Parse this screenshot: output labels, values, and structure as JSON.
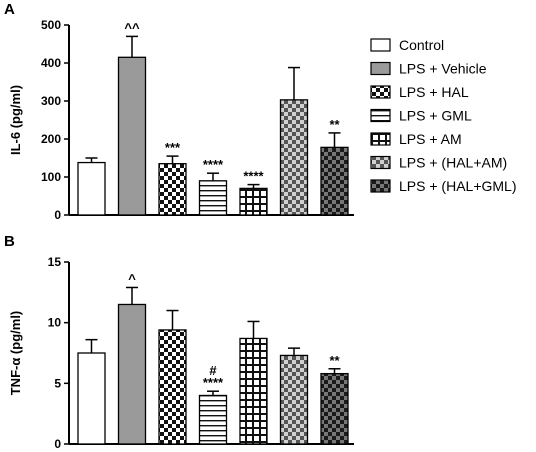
{
  "legend": [
    {
      "label": "Control",
      "pattern": "white"
    },
    {
      "label": "LPS + Vehicle",
      "pattern": "gray"
    },
    {
      "label": "LPS + HAL",
      "pattern": "checker"
    },
    {
      "label": "LPS + GML",
      "pattern": "hlines"
    },
    {
      "label": "LPS + AM",
      "pattern": "grid"
    },
    {
      "label": "LPS + (HAL+AM)",
      "pattern": "checker-gray"
    },
    {
      "label": "LPS + (HAL+GML)",
      "pattern": "checker-dark"
    }
  ],
  "chart_data": [
    {
      "panel": "A",
      "type": "bar",
      "ylabel": "IL-6 (pg/ml)",
      "ylim": [
        0,
        500
      ],
      "yticks": [
        0,
        100,
        200,
        300,
        400,
        500
      ],
      "categories": [
        "Control",
        "LPS + Vehicle",
        "LPS + HAL",
        "LPS + GML",
        "LPS + AM",
        "LPS + (HAL+AM)",
        "LPS + (HAL+GML)"
      ],
      "values": [
        138,
        415,
        135,
        90,
        70,
        303,
        178
      ],
      "errors": [
        12,
        55,
        20,
        20,
        10,
        85,
        38
      ],
      "annotations": [
        "",
        "^^",
        "***",
        "****",
        "****",
        "",
        "**"
      ]
    },
    {
      "panel": "B",
      "type": "bar",
      "ylabel": "TNF-α (pg/ml)",
      "ylim": [
        0,
        15
      ],
      "yticks": [
        0,
        5,
        10,
        15
      ],
      "categories": [
        "Control",
        "LPS + Vehicle",
        "LPS + HAL",
        "LPS + GML",
        "LPS + AM",
        "LPS + (HAL+AM)",
        "LPS + (HAL+GML)"
      ],
      "values": [
        7.5,
        11.5,
        9.4,
        4.0,
        8.7,
        7.3,
        5.8
      ],
      "errors": [
        1.1,
        1.4,
        1.6,
        0.35,
        1.4,
        0.6,
        0.4
      ],
      "annotations": [
        "",
        "^",
        "",
        "#\n****",
        "",
        "",
        "**"
      ]
    }
  ]
}
